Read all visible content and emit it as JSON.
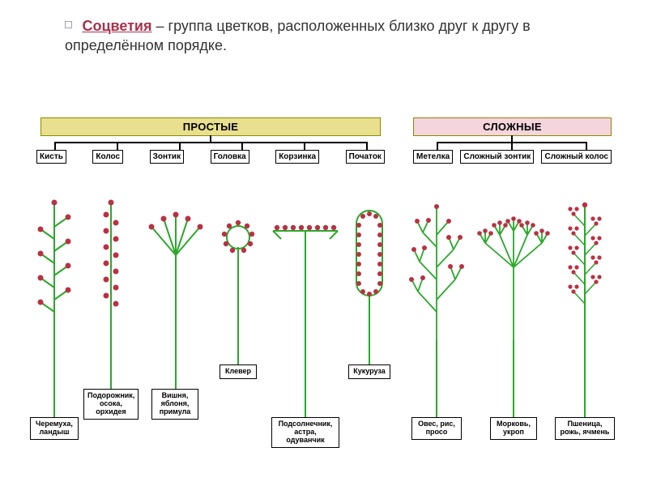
{
  "colors": {
    "flower": "#b93142",
    "stem": "#2aa82a",
    "simple_hdr_bg": "#e8e08f",
    "complex_hdr_bg": "#f4d4dd",
    "box_border": "#000000",
    "conn": "#000000",
    "term": "#a8324b"
  },
  "svg_defaults": {
    "flower_radius": 3.2,
    "stem_width": 2
  },
  "title": {
    "term": "Соцветия",
    "rest": " – группа цветков, расположенных близко друг к другу в определённом порядке."
  },
  "simple": {
    "header": "ПРОСТЫЕ",
    "types": [
      "Кисть",
      "Колос",
      "Зонтик",
      "Головка",
      "Корзинка",
      "Початок"
    ]
  },
  "complex": {
    "header": "СЛОЖНЫЕ",
    "types": [
      "Метелка",
      "Сложный зонтик",
      "Сложный колос"
    ]
  },
  "examples": {
    "kist": "Черемуха,\nландыш",
    "kolos": "Подорожник,\nосока,\nорхидея",
    "zontik": "Вишня,\nяблоня,\nпримула",
    "golovka": "Клевер",
    "korzinka": "Подсолнечник,\nастра,\nодуванчик",
    "pochatok": "Кукуруза",
    "metelka": "Овес, рис,\nпросо",
    "szontik": "Морковь,\nукроп",
    "skolos": "Пшеница,\nрожь, ячмень"
  }
}
